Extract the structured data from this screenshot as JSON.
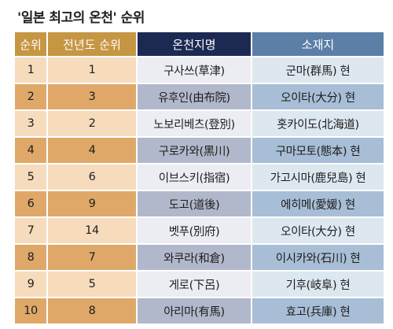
{
  "title": "'일본 최고의 온천' 순위",
  "headers": {
    "rank": "순위",
    "previous_rank": "전년도 순위",
    "onsen_name": "온천지명",
    "location": "소재지"
  },
  "rows": [
    {
      "rank": "1",
      "previous_rank": "1",
      "onsen_name": "구사쓰(草津)",
      "location": "군마(群馬) 현"
    },
    {
      "rank": "2",
      "previous_rank": "3",
      "onsen_name": "유후인(由布院)",
      "location": "오이타(大分) 현"
    },
    {
      "rank": "3",
      "previous_rank": "2",
      "onsen_name": "노보리베츠(登別)",
      "location": "홋카이도(北海道)"
    },
    {
      "rank": "4",
      "previous_rank": "4",
      "onsen_name": "구로카와(黑川)",
      "location": "구마모토(態本) 현"
    },
    {
      "rank": "5",
      "previous_rank": "6",
      "onsen_name": "이브스키(指宿)",
      "location": "가고시마(鹿兒島) 현"
    },
    {
      "rank": "6",
      "previous_rank": "9",
      "onsen_name": "도고(道後)",
      "location": "에히메(愛媛) 현"
    },
    {
      "rank": "7",
      "previous_rank": "14",
      "onsen_name": "벳푸(別府)",
      "location": "오이타(大分) 현"
    },
    {
      "rank": "8",
      "previous_rank": "7",
      "onsen_name": "와쿠라(和倉)",
      "location": "이시카와(石川) 현"
    },
    {
      "rank": "9",
      "previous_rank": "5",
      "onsen_name": "게로(下呂)",
      "location": "기후(岐阜) 현"
    },
    {
      "rank": "10",
      "previous_rank": "8",
      "onsen_name": "아리마(有馬)",
      "location": "효고(兵庫) 현"
    }
  ],
  "colors": {
    "header_rank_bg": "#c69643",
    "header_name_bg": "#1c2952",
    "header_location_bg": "#5b7fa6",
    "rank_light": "#f6dcbc",
    "rank_dark": "#dfa868",
    "name_light": "#ecedf3",
    "name_dark": "#b2b8cb",
    "location_light": "#dde7f0",
    "location_dark": "#a7bed6"
  }
}
